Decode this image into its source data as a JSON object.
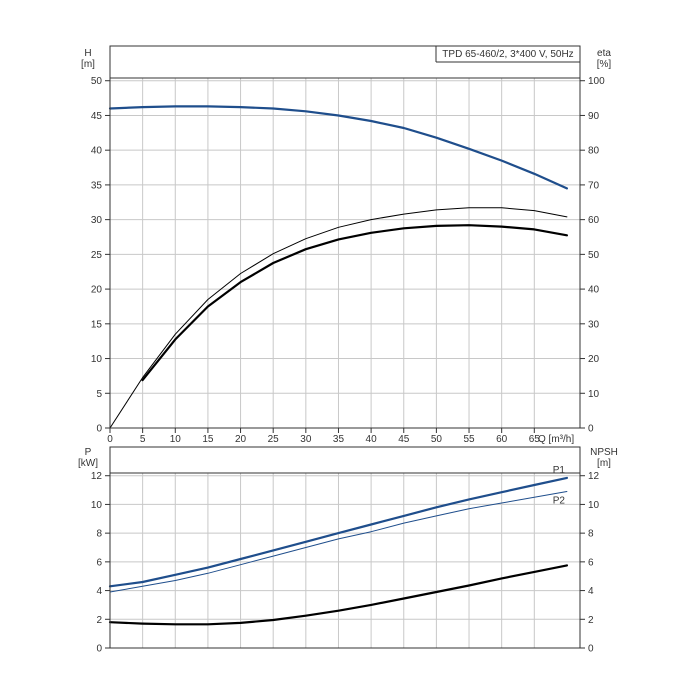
{
  "chart_data": [
    {
      "type": "line",
      "title": "TPD 65-460/2, 3*400 V, 50Hz",
      "xlabel": "Q [m³/h]",
      "ylabel_left": "H\n[m]",
      "ylabel_right": "eta\n[%]",
      "xlim": [
        0,
        72
      ],
      "ylim_left": [
        0,
        55
      ],
      "ylim_right": [
        0,
        110
      ],
      "x_ticks": [
        0,
        5,
        10,
        15,
        20,
        25,
        30,
        35,
        40,
        45,
        50,
        55,
        60,
        65
      ],
      "y_ticks_left": [
        0,
        5,
        10,
        15,
        20,
        25,
        30,
        35,
        40,
        45,
        50
      ],
      "y_ticks_right": [
        0,
        10,
        20,
        30,
        40,
        50,
        60,
        70,
        80,
        90,
        100
      ],
      "grid": true,
      "series": [
        {
          "axis": "left",
          "color": "#1f4e8c",
          "style": "thick",
          "x": [
            0,
            5,
            10,
            15,
            20,
            25,
            30,
            35,
            40,
            45,
            50,
            55,
            60,
            65,
            70
          ],
          "y": [
            46.0,
            46.2,
            46.3,
            46.3,
            46.2,
            46.0,
            45.6,
            45.0,
            44.2,
            43.2,
            41.8,
            40.2,
            38.5,
            36.6,
            34.5
          ]
        },
        {
          "axis": "right",
          "color": "#000000",
          "style": "thin",
          "x": [
            0,
            5,
            10,
            15,
            20,
            25,
            30,
            35,
            40,
            45,
            50,
            55,
            60,
            65,
            70
          ],
          "y": [
            0,
            14.5,
            27,
            37,
            44.5,
            50.2,
            54.5,
            57.8,
            60.0,
            61.6,
            62.8,
            63.4,
            63.4,
            62.6,
            60.8
          ]
        },
        {
          "axis": "right",
          "color": "#000000",
          "style": "thick",
          "x": [
            5,
            10,
            15,
            20,
            25,
            30,
            35,
            40,
            45,
            50,
            55,
            60,
            65,
            70
          ],
          "y": [
            13.8,
            25.5,
            35,
            42,
            47.5,
            51.5,
            54.3,
            56.2,
            57.5,
            58.2,
            58.4,
            58.0,
            57.2,
            55.5
          ]
        }
      ]
    },
    {
      "type": "line",
      "xlabel": "",
      "ylabel_left": "P\n[kW]",
      "ylabel_right": "NPSH\n[m]",
      "xlim": [
        0,
        72
      ],
      "ylim_left": [
        0,
        14
      ],
      "ylim_right": [
        0,
        14
      ],
      "y_ticks_left": [
        0,
        2,
        4,
        6,
        8,
        10,
        12
      ],
      "y_ticks_right": [
        0,
        2,
        4,
        6,
        8,
        10,
        12
      ],
      "grid": true,
      "series": [
        {
          "name": "P1",
          "axis": "left",
          "color": "#1f4e8c",
          "style": "thick",
          "x": [
            0,
            5,
            10,
            15,
            20,
            25,
            30,
            35,
            40,
            45,
            50,
            55,
            60,
            65,
            70
          ],
          "y": [
            4.3,
            4.6,
            5.1,
            5.6,
            6.2,
            6.8,
            7.4,
            8.0,
            8.6,
            9.2,
            9.8,
            10.35,
            10.85,
            11.35,
            11.85
          ]
        },
        {
          "name": "P2",
          "axis": "left",
          "color": "#1f4e8c",
          "style": "thin",
          "x": [
            0,
            5,
            10,
            15,
            20,
            25,
            30,
            35,
            40,
            45,
            50,
            55,
            60,
            65,
            70
          ],
          "y": [
            3.9,
            4.3,
            4.7,
            5.2,
            5.8,
            6.4,
            7.0,
            7.6,
            8.1,
            8.7,
            9.2,
            9.7,
            10.1,
            10.5,
            10.9
          ]
        },
        {
          "axis": "right",
          "color": "#000000",
          "style": "thick",
          "x": [
            0,
            5,
            10,
            15,
            20,
            25,
            30,
            35,
            40,
            45,
            50,
            55,
            60,
            65,
            70
          ],
          "y": [
            1.8,
            1.7,
            1.65,
            1.65,
            1.75,
            1.95,
            2.25,
            2.6,
            3.0,
            3.45,
            3.9,
            4.35,
            4.85,
            5.3,
            5.75
          ]
        }
      ]
    }
  ]
}
